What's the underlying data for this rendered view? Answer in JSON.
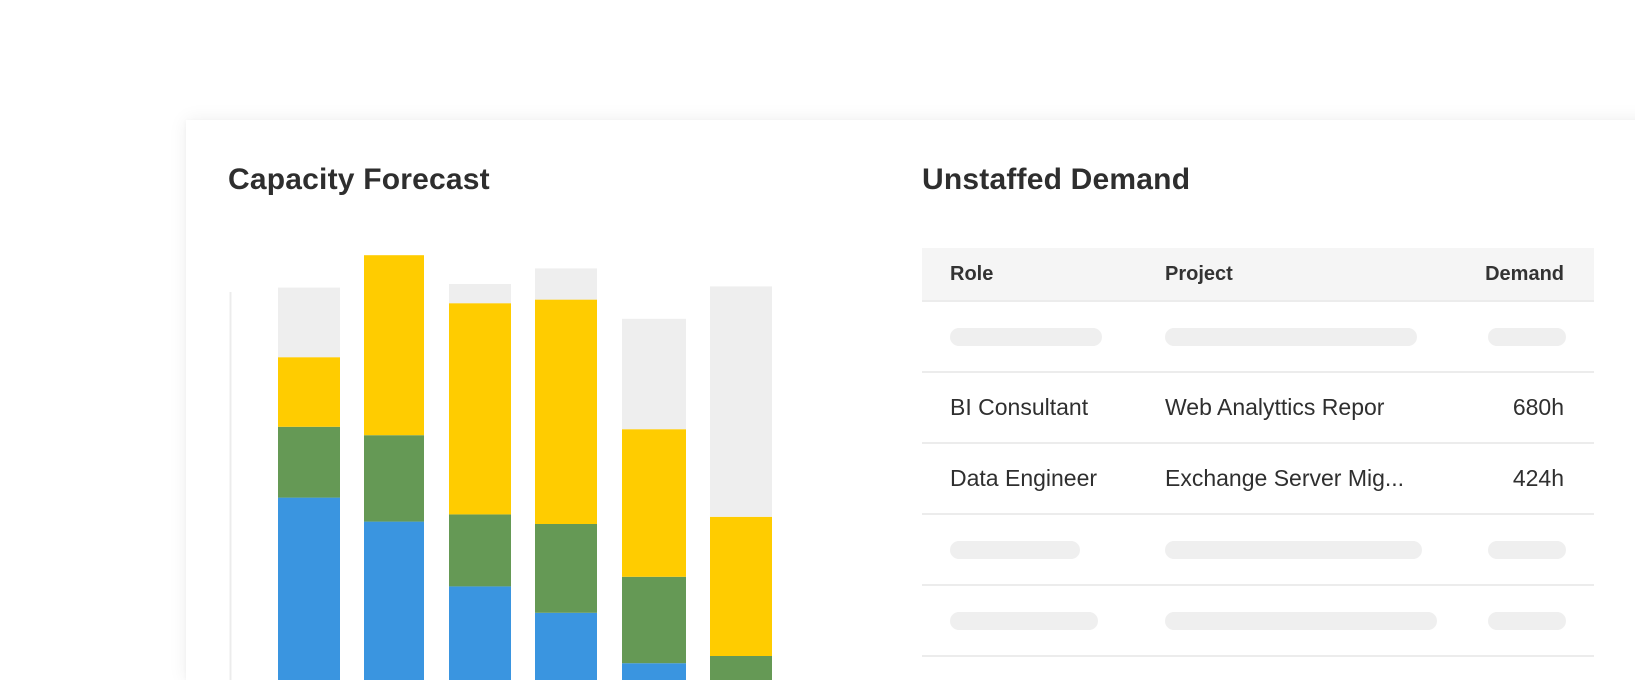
{
  "capacity": {
    "title": "Capacity Forecast",
    "colors": {
      "blue": "#3a95e0",
      "green": "#659955",
      "yellow": "#ffcc00",
      "gray": "#eeeeee"
    },
    "chart_data": {
      "type": "bar",
      "stacked": true,
      "title": "Capacity Forecast",
      "categories": [
        "",
        "",
        "",
        "",
        "",
        ""
      ],
      "series": [
        {
          "values": [
            15.2,
            13.2,
            7.8,
            5.6,
            1.4,
            0.0
          ]
        },
        {
          "values": [
            5.9,
            7.2,
            6.0,
            7.4,
            7.2,
            2.0
          ]
        },
        {
          "values": [
            5.8,
            15.0,
            17.6,
            18.7,
            12.3,
            11.6
          ]
        },
        {
          "values": [
            5.8,
            0.0,
            1.6,
            2.6,
            9.2,
            19.2
          ]
        }
      ],
      "ylim": [
        0,
        37
      ]
    }
  },
  "unstaffed": {
    "title": "Unstaffed Demand",
    "columns": {
      "role": "Role",
      "project": "Project",
      "demand": "Demand"
    },
    "rows": [
      {
        "role": "BI Consultant",
        "project": "Web Analyttics Repor",
        "demand": "680h"
      },
      {
        "role": "Data Engineer",
        "project": "Exchange Server Mig...",
        "demand": "424h"
      }
    ]
  }
}
